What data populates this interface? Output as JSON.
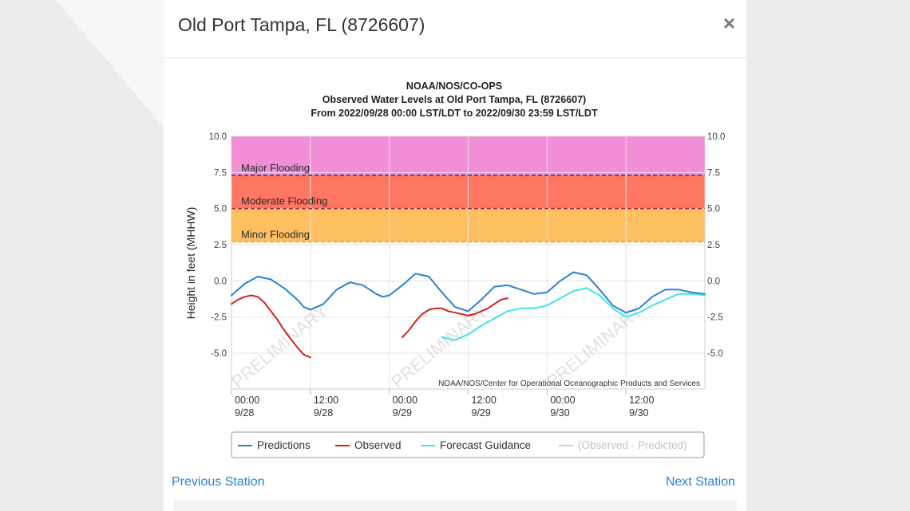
{
  "modal": {
    "title": "Old Port Tampa, FL (8726607)",
    "close_icon": "×",
    "prev_label": "Previous Station",
    "next_label": "Next Station"
  },
  "chart_data": {
    "type": "line",
    "title_lines": [
      "NOAA/NOS/CO-OPS",
      "Observed Water Levels at Old Port Tampa, FL (8726607)",
      "From 2022/09/28 00:00 LST/LDT to 2022/09/30 23:59 LST/LDT"
    ],
    "ylabel": "Height in feet (MHHW)",
    "ylim": [
      -7.5,
      10.0
    ],
    "yticks": [
      "10.0",
      "7.5",
      "5.0",
      "2.5",
      "0.0",
      "-2.5",
      "-5.0"
    ],
    "ytick_values": [
      10.0,
      7.5,
      5.0,
      2.5,
      0.0,
      -2.5,
      -5.0
    ],
    "xlim": [
      0,
      72
    ],
    "xticks": [
      {
        "x": 0,
        "time": "00:00",
        "date": "9/28"
      },
      {
        "x": 12,
        "time": "12:00",
        "date": "9/28"
      },
      {
        "x": 24,
        "time": "00:00",
        "date": "9/29"
      },
      {
        "x": 36,
        "time": "12:00",
        "date": "9/29"
      },
      {
        "x": 48,
        "time": "00:00",
        "date": "9/30"
      },
      {
        "x": 60,
        "time": "12:00",
        "date": "9/30"
      }
    ],
    "flood_bands": [
      {
        "label": "Major Flooding",
        "from": 7.3,
        "to": 10.0,
        "fill": "#f28ed8",
        "line": "#6a1b6e"
      },
      {
        "label": "Moderate Flooding",
        "from": 5.0,
        "to": 7.3,
        "fill": "#ff7663",
        "line": "#d01818"
      },
      {
        "label": "Minor Flooding",
        "from": 2.7,
        "to": 5.0,
        "fill": "#ffc062",
        "line": "#e6a024"
      }
    ],
    "series": [
      {
        "name": "Predictions",
        "color": "#2b82d2",
        "x": [
          0,
          2,
          4,
          6,
          8,
          10,
          11,
          12,
          14,
          16,
          18,
          20,
          22,
          23,
          24,
          26,
          28,
          30,
          32,
          34,
          36,
          38,
          40,
          42,
          44,
          46,
          48,
          50,
          52,
          54,
          56,
          58,
          60,
          62,
          64,
          66,
          68,
          70,
          72
        ],
        "y": [
          -1.0,
          -0.2,
          0.3,
          0.1,
          -0.5,
          -1.3,
          -1.8,
          -2.0,
          -1.6,
          -0.6,
          -0.1,
          -0.3,
          -0.9,
          -1.1,
          -1.0,
          -0.3,
          0.5,
          0.3,
          -0.8,
          -1.8,
          -2.1,
          -1.3,
          -0.4,
          -0.3,
          -0.6,
          -0.9,
          -0.8,
          0.0,
          0.6,
          0.4,
          -0.6,
          -1.7,
          -2.2,
          -1.9,
          -1.1,
          -0.6,
          -0.6,
          -0.8,
          -0.9
        ]
      },
      {
        "name": "Observed",
        "color": "#d42323",
        "x": [
          0,
          1,
          2,
          3,
          4,
          5,
          6,
          7,
          8,
          9,
          10,
          11,
          12,
          13
        ],
        "y": [
          -1.6,
          -1.3,
          -1.1,
          -1.0,
          -1.1,
          -1.5,
          -2.1,
          -2.7,
          -3.4,
          -4.0,
          -4.6,
          -5.1,
          -5.3,
          null
        ],
        "x2": [
          26,
          27,
          28,
          29,
          30,
          31,
          32,
          33,
          34,
          35,
          36,
          37,
          38,
          39,
          40,
          41,
          42
        ],
        "y2": [
          -3.9,
          -3.4,
          -2.8,
          -2.3,
          -2.0,
          -1.9,
          -1.9,
          -2.1,
          -2.2,
          -2.3,
          -2.4,
          -2.3,
          -2.1,
          -1.9,
          -1.6,
          -1.3,
          -1.2
        ]
      },
      {
        "name": "Forecast Guidance",
        "color": "#45e2e6",
        "x": [
          32,
          34,
          36,
          38,
          40,
          42,
          44,
          46,
          48,
          50,
          52,
          54,
          56,
          58,
          60,
          62,
          64,
          66,
          68,
          70,
          72
        ],
        "y": [
          -3.9,
          -4.1,
          -3.7,
          -3.1,
          -2.6,
          -2.1,
          -1.9,
          -1.9,
          -1.7,
          -1.2,
          -0.7,
          -0.5,
          -1.0,
          -1.9,
          -2.5,
          -2.2,
          -1.7,
          -1.3,
          -0.9,
          -0.9,
          -1.0
        ]
      }
    ],
    "legend": {
      "position": "bottom",
      "items": [
        {
          "label": "Predictions",
          "color": "#2b82d2",
          "active": true
        },
        {
          "label": "Observed",
          "color": "#d42323",
          "active": true
        },
        {
          "label": "Forecast Guidance",
          "color": "#45e2e6",
          "active": true
        },
        {
          "label": "(Observed - Predicted)",
          "color": "#cfcfcf",
          "active": false
        }
      ]
    },
    "watermark": "PRELIMINARY",
    "credit": "NOAA/NOS/Center for Operational Oceanographic Products and Services",
    "grid": true
  }
}
